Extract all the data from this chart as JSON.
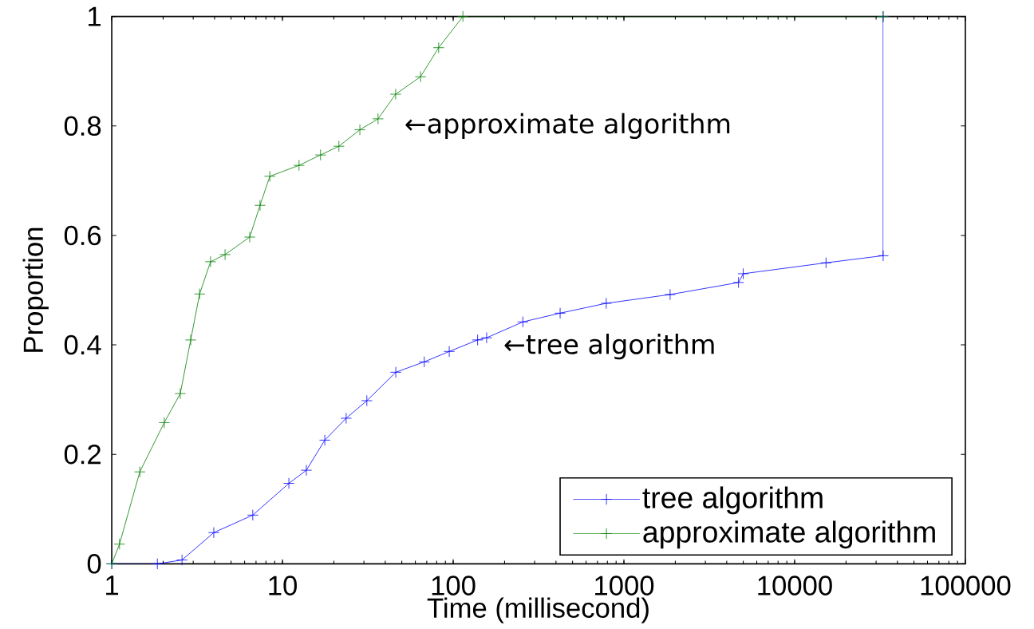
{
  "chart_data": {
    "type": "line",
    "xlabel": "Time (millisecond)",
    "ylabel": "Proportion",
    "log": "x",
    "xlim": [
      1,
      100000
    ],
    "xticks": [
      1,
      10,
      100,
      1000,
      10000,
      100000
    ],
    "ylim": [
      0,
      1
    ],
    "yticks": [
      0,
      0.2,
      0.4,
      0.6,
      0.8,
      1
    ],
    "legend": "bottom right",
    "grid": false,
    "series": [
      {
        "name": "tree algorithm",
        "color": "#0000ff",
        "marker": "cross",
        "x": [
          1,
          1.85,
          2.58,
          3.96,
          6.7,
          10.9,
          13.8,
          17.7,
          23.6,
          31.2,
          46.1,
          67.7,
          94.8,
          139,
          157,
          256,
          423,
          788,
          1865,
          4690,
          5000,
          15270,
          33000,
          33000
        ],
        "values": [
          0,
          0,
          0.007,
          0.057,
          0.089,
          0.147,
          0.171,
          0.226,
          0.266,
          0.298,
          0.35,
          0.369,
          0.388,
          0.409,
          0.413,
          0.442,
          0.458,
          0.476,
          0.492,
          0.514,
          0.53,
          0.55,
          0.563,
          1
        ]
      },
      {
        "name": "approximate algorithm",
        "color": "#008000",
        "marker": "cross",
        "x": [
          1,
          1.11,
          1.46,
          2.03,
          2.52,
          2.9,
          3.27,
          3.79,
          4.61,
          6.43,
          7.39,
          8.43,
          12.5,
          16.7,
          21.4,
          28.4,
          36.3,
          46,
          64.4,
          82.2,
          114,
          33000
        ],
        "values": [
          0,
          0.036,
          0.168,
          0.258,
          0.311,
          0.409,
          0.493,
          0.552,
          0.565,
          0.597,
          0.655,
          0.708,
          0.728,
          0.747,
          0.763,
          0.793,
          0.813,
          0.858,
          0.89,
          0.943,
          1,
          1
        ]
      }
    ],
    "annotations": [
      "←approximate algorithm",
      "←tree algorithm"
    ]
  }
}
